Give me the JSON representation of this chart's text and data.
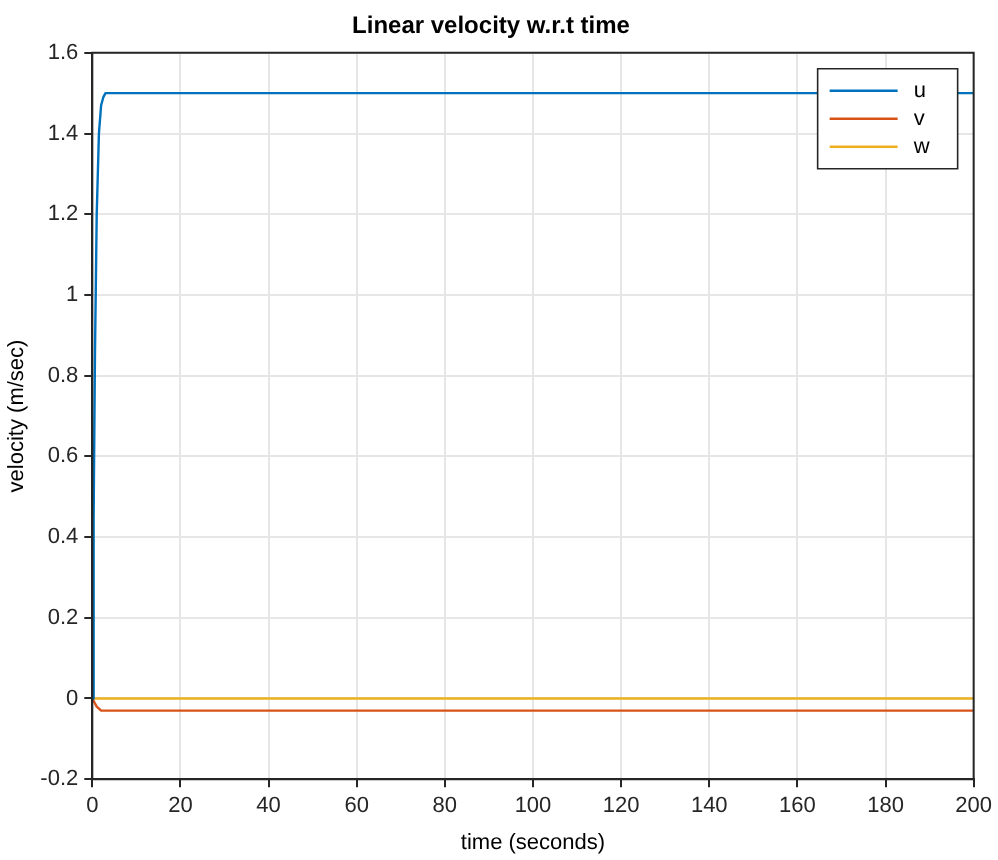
{
  "chart_data": {
    "type": "line",
    "title": "Linear velocity w.r.t time",
    "xlabel": "time (seconds)",
    "ylabel": "velocity (m/sec)",
    "series": [
      {
        "name": "u",
        "color": "#0072bd",
        "x": [
          0,
          0.3,
          0.6,
          1,
          1.5,
          2,
          2.5,
          3,
          4,
          200
        ],
        "values": [
          0,
          0.45,
          0.85,
          1.2,
          1.4,
          1.47,
          1.49,
          1.5,
          1.5,
          1.5
        ]
      },
      {
        "name": "v",
        "color": "#d95319",
        "x": [
          0,
          0.5,
          1,
          2,
          3,
          200
        ],
        "values": [
          0,
          -0.01,
          -0.02,
          -0.03,
          -0.03,
          -0.03
        ]
      },
      {
        "name": "w",
        "color": "#edb120",
        "x": [
          0,
          200
        ],
        "values": [
          0,
          0
        ]
      }
    ],
    "xlim": [
      0,
      200
    ],
    "xticks": [
      0,
      20,
      40,
      60,
      80,
      100,
      120,
      140,
      160,
      180,
      200
    ],
    "ylim": [
      -0.2,
      1.6
    ],
    "yticks": [
      -0.2,
      0,
      0.2,
      0.4,
      0.6,
      0.8,
      1,
      1.2,
      1.4,
      1.6
    ],
    "grid": true,
    "legend": "top right",
    "marker": "none",
    "line_style": "solid"
  }
}
